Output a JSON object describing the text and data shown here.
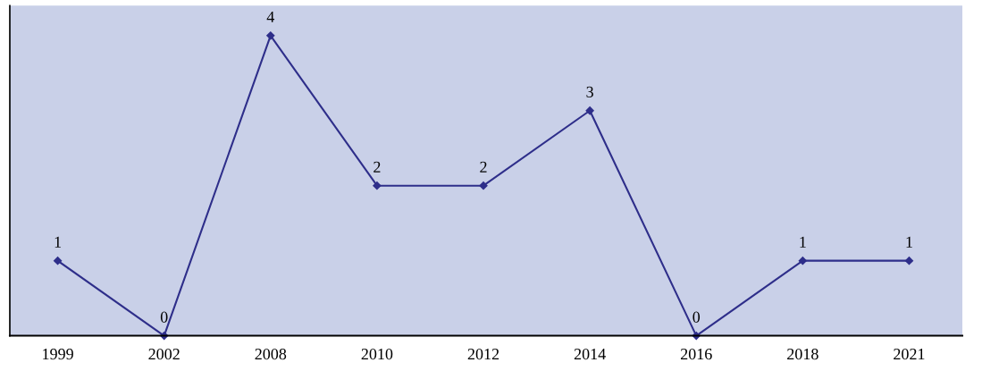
{
  "chart_data": {
    "type": "line",
    "categories": [
      "1999",
      "2002",
      "2008",
      "2010",
      "2012",
      "2014",
      "2016",
      "2018",
      "2021"
    ],
    "series": [
      {
        "color": "#2e2e8a",
        "values": [
          1,
          0,
          4,
          2,
          2,
          3,
          0,
          1,
          1
        ]
      }
    ],
    "data_labels": true,
    "marker": "diamond",
    "line_style": "solid",
    "grid": false,
    "legend": false
  }
}
